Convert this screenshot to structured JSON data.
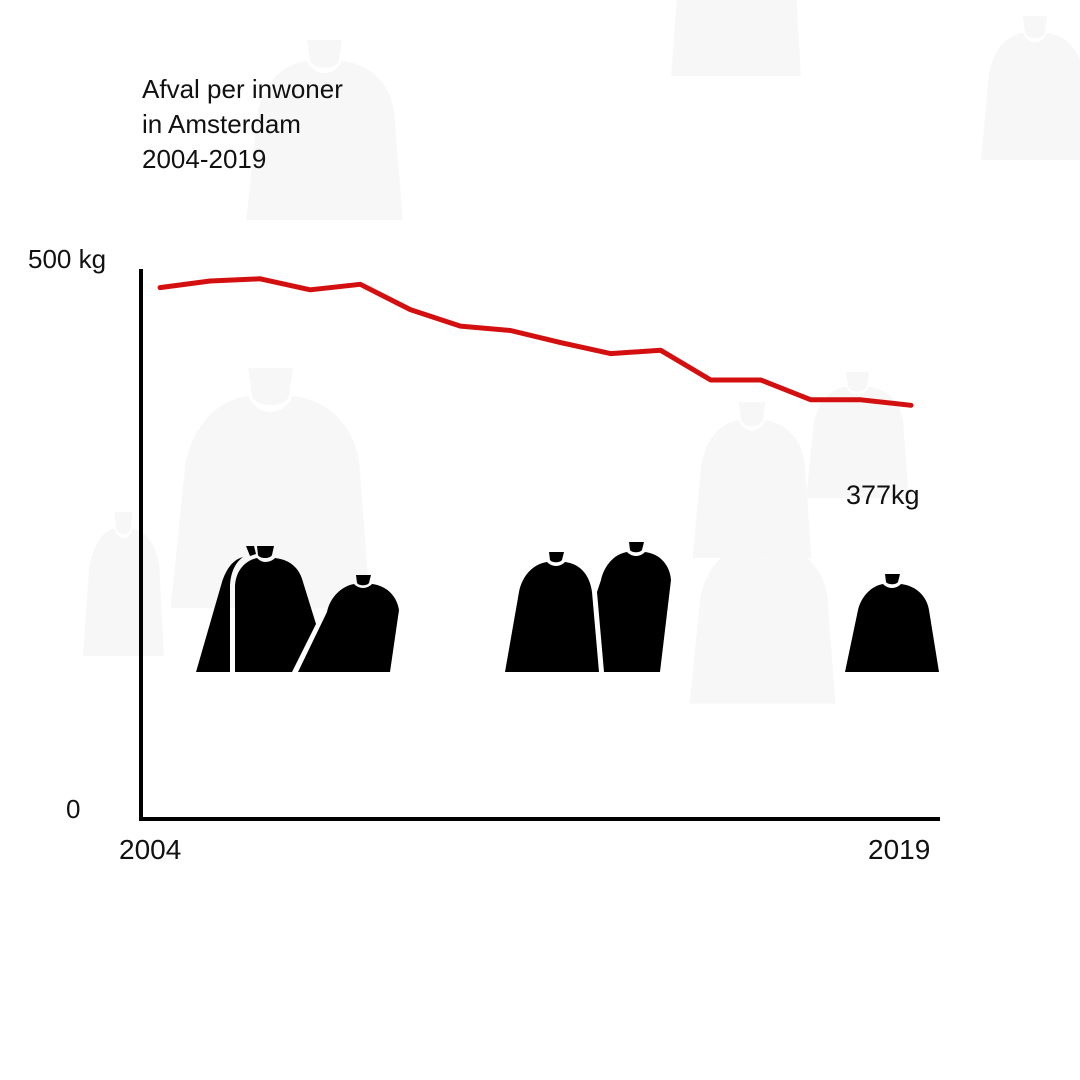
{
  "title": {
    "line1": "Afval per inwoner",
    "line2": "in Amsterdam",
    "line3": "2004-2019"
  },
  "axes": {
    "y_top_label": "500 kg",
    "y_bottom_label": "0",
    "x_left_label": "2004",
    "x_right_label": "2019"
  },
  "annotation": {
    "last_value": "377kg"
  },
  "colors": {
    "line": "#d40f0f",
    "axis": "#000000",
    "bag": "#000000",
    "bag_background": "#f7f7f7"
  },
  "chart_data": {
    "type": "line",
    "title": "Afval per inwoner in Amsterdam 2004-2019",
    "xlabel": "",
    "ylabel": "kg",
    "ylim": [
      0,
      500
    ],
    "x": [
      2004,
      2005,
      2006,
      2007,
      2008,
      2009,
      2010,
      2011,
      2012,
      2013,
      2014,
      2015,
      2016,
      2017,
      2018,
      2019
    ],
    "series": [
      {
        "name": "Afval per inwoner (kg)",
        "values": [
          484,
          490,
          492,
          482,
          487,
          464,
          449,
          445,
          434,
          424,
          427,
          400,
          400,
          382,
          382,
          377
        ]
      }
    ],
    "tick_labels": {
      "y": [
        "0",
        "500 kg"
      ],
      "x": [
        "2004",
        "2019"
      ]
    },
    "annotations": [
      {
        "x": 2019,
        "text": "377kg"
      }
    ],
    "grid": false,
    "legend": "none"
  }
}
